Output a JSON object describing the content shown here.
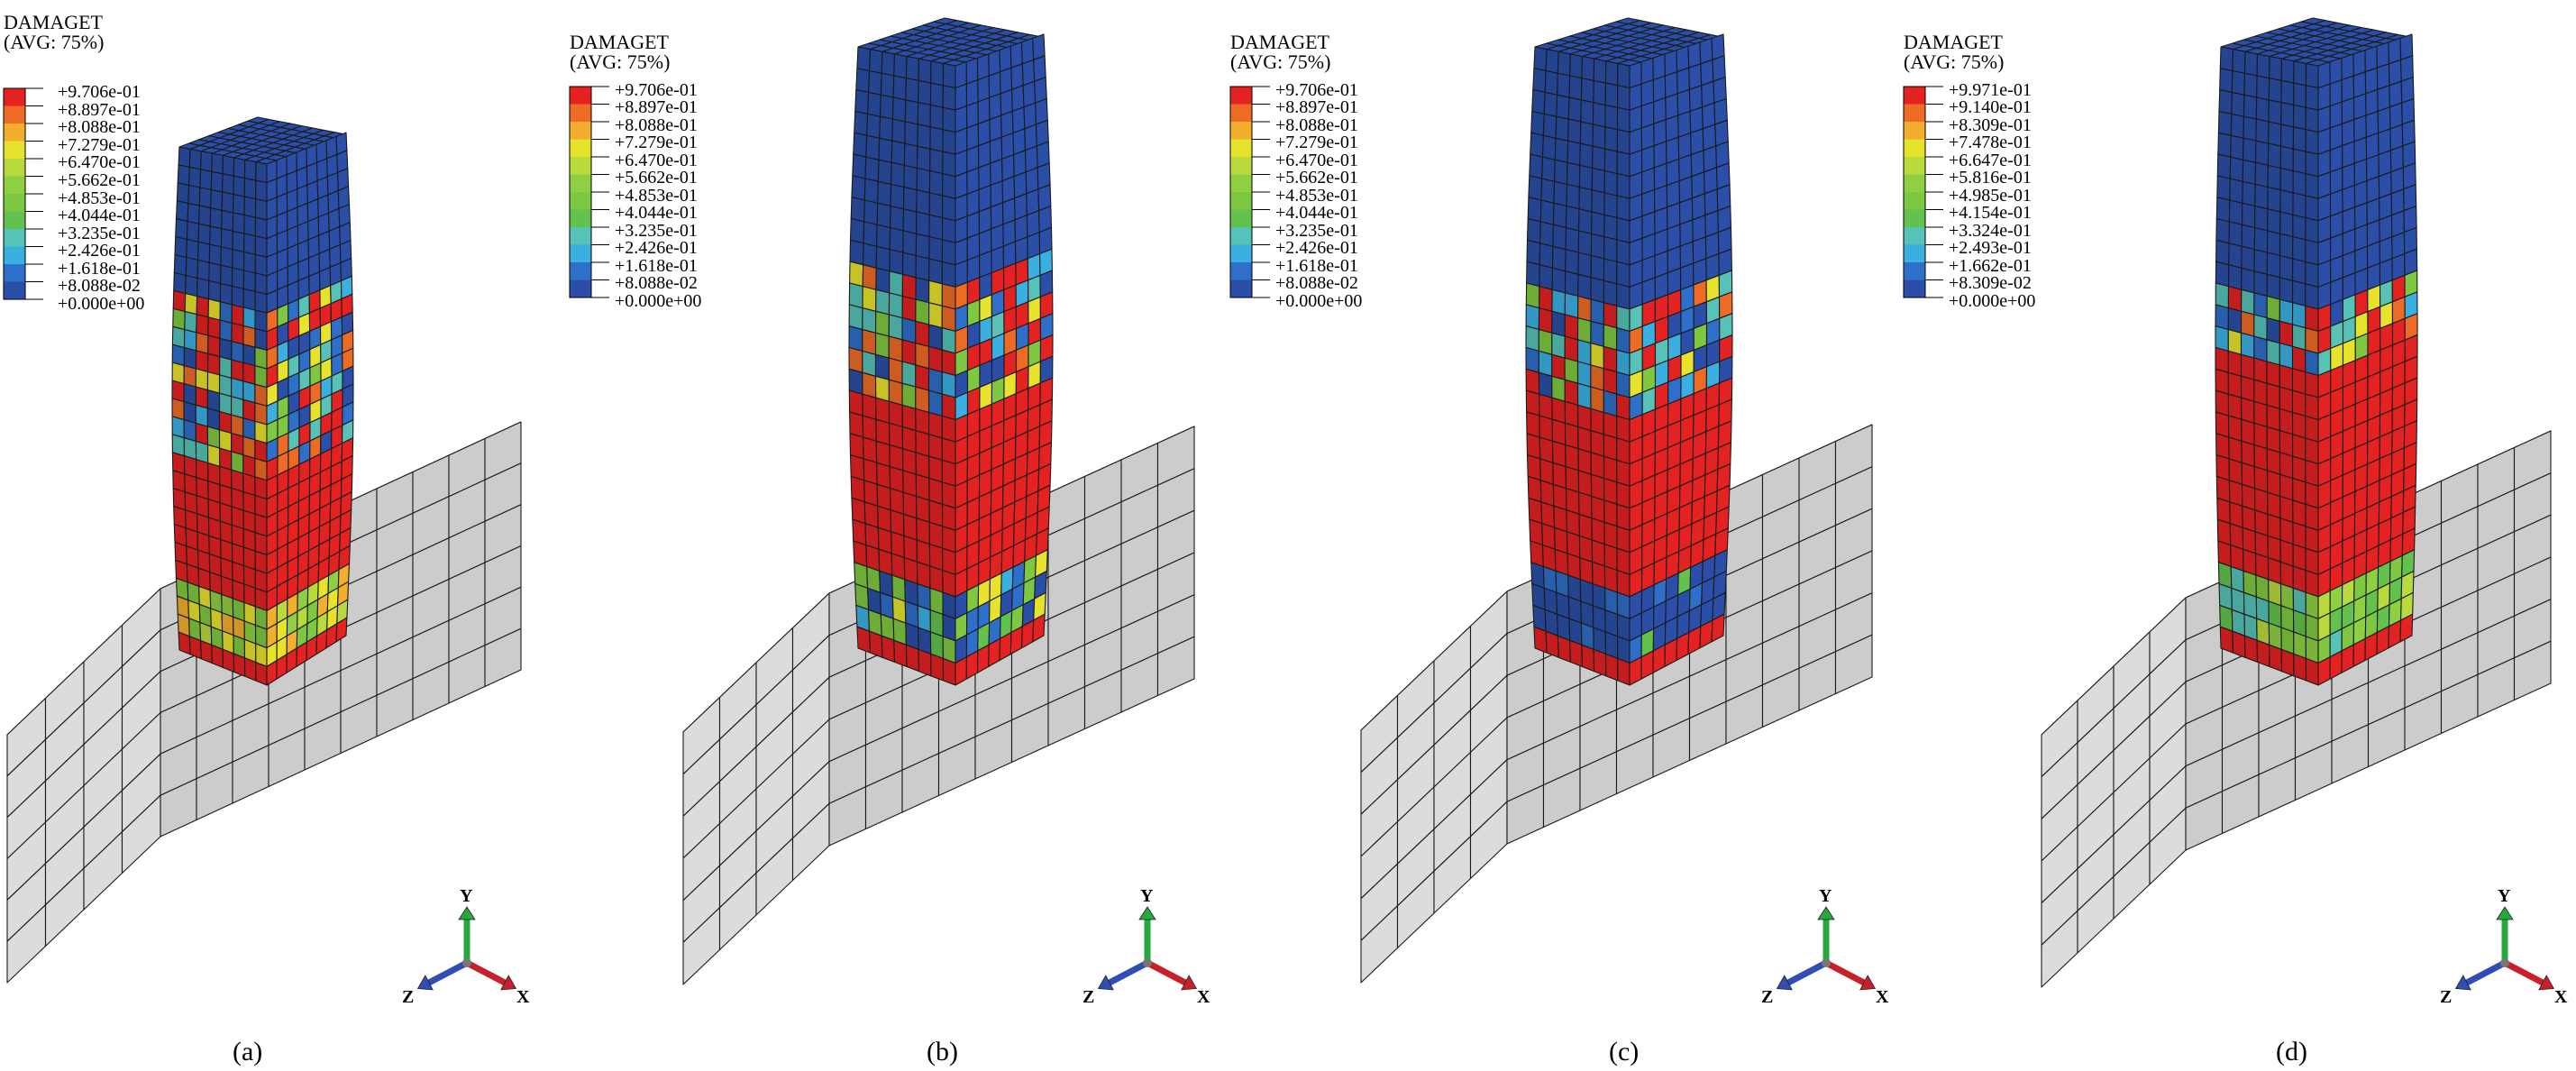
{
  "palette": [
    "#2b4fa8",
    "#2e6fc9",
    "#3ab0e2",
    "#56c2b8",
    "#63c24e",
    "#7dc840",
    "#8fd043",
    "#b9da3d",
    "#e7e32c",
    "#f2ae2c",
    "#ee6b25",
    "#e52222"
  ],
  "base_color": "#e8e8e8",
  "axis_colors": {
    "y": "#26a83c",
    "x": "#c8202a",
    "z": "#2f4db3"
  },
  "triads": [
    {
      "y": "Y",
      "z": "Z",
      "x": "X"
    },
    {
      "y": "Y",
      "z": "Z",
      "x": "X"
    },
    {
      "y": "Y",
      "z": "Z",
      "x": "X"
    },
    {
      "y": "Y",
      "z": "Z",
      "x": "X"
    }
  ],
  "panels": [
    {
      "caption": "(a)",
      "legend": {
        "title": "DAMAGET",
        "subtitle": "(AVG: 75%)",
        "values": [
          "+9.706e-01",
          "+8.897e-01",
          "+8.088e-01",
          "+7.279e-01",
          "+6.470e-01",
          "+5.662e-01",
          "+4.853e-01",
          "+4.044e-01",
          "+3.235e-01",
          "+2.426e-01",
          "+1.618e-01",
          "+8.088e-02",
          "+0.000e+00"
        ]
      },
      "damage_profile": {
        "top_undamaged_rows": 8,
        "mixed_rows": 9,
        "mid_damaged": "red",
        "bottom_band": "yellow-green"
      }
    },
    {
      "caption": "(b)",
      "legend": {
        "title": "DAMAGET",
        "subtitle": "(AVG: 75%)",
        "values": [
          "+9.706e-01",
          "+8.897e-01",
          "+8.088e-01",
          "+7.279e-01",
          "+6.470e-01",
          "+5.662e-01",
          "+4.853e-01",
          "+4.044e-01",
          "+3.235e-01",
          "+2.426e-01",
          "+1.618e-01",
          "+8.088e-02",
          "+0.000e+00"
        ]
      },
      "damage_profile": {
        "top_undamaged_rows": 10,
        "mixed_rows": 6,
        "mid_damaged": "red",
        "bottom_band": "green-blue"
      }
    },
    {
      "caption": "(c)",
      "legend": {
        "title": "DAMAGET",
        "subtitle": "(AVG: 75%)",
        "values": [
          "+9.706e-01",
          "+8.897e-01",
          "+8.088e-01",
          "+7.279e-01",
          "+6.470e-01",
          "+5.662e-01",
          "+4.853e-01",
          "+4.044e-01",
          "+3.235e-01",
          "+2.426e-01",
          "+1.618e-01",
          "+8.088e-02",
          "+0.000e+00"
        ]
      },
      "damage_profile": {
        "top_undamaged_rows": 11,
        "mixed_rows": 5,
        "mid_damaged": "red",
        "bottom_band": "blue"
      }
    },
    {
      "caption": "(d)",
      "legend": {
        "title": "DAMAGET",
        "subtitle": "(AVG: 75%)",
        "values": [
          "+9.971e-01",
          "+9.140e-01",
          "+8.309e-01",
          "+7.478e-01",
          "+6.647e-01",
          "+5.816e-01",
          "+4.985e-01",
          "+4.154e-01",
          "+3.324e-01",
          "+2.493e-01",
          "+1.662e-01",
          "+8.309e-02",
          "+0.000e+00"
        ]
      },
      "damage_profile": {
        "top_undamaged_rows": 11,
        "mixed_rows": 3,
        "mid_damaged": "red",
        "bottom_band": "green"
      }
    }
  ]
}
